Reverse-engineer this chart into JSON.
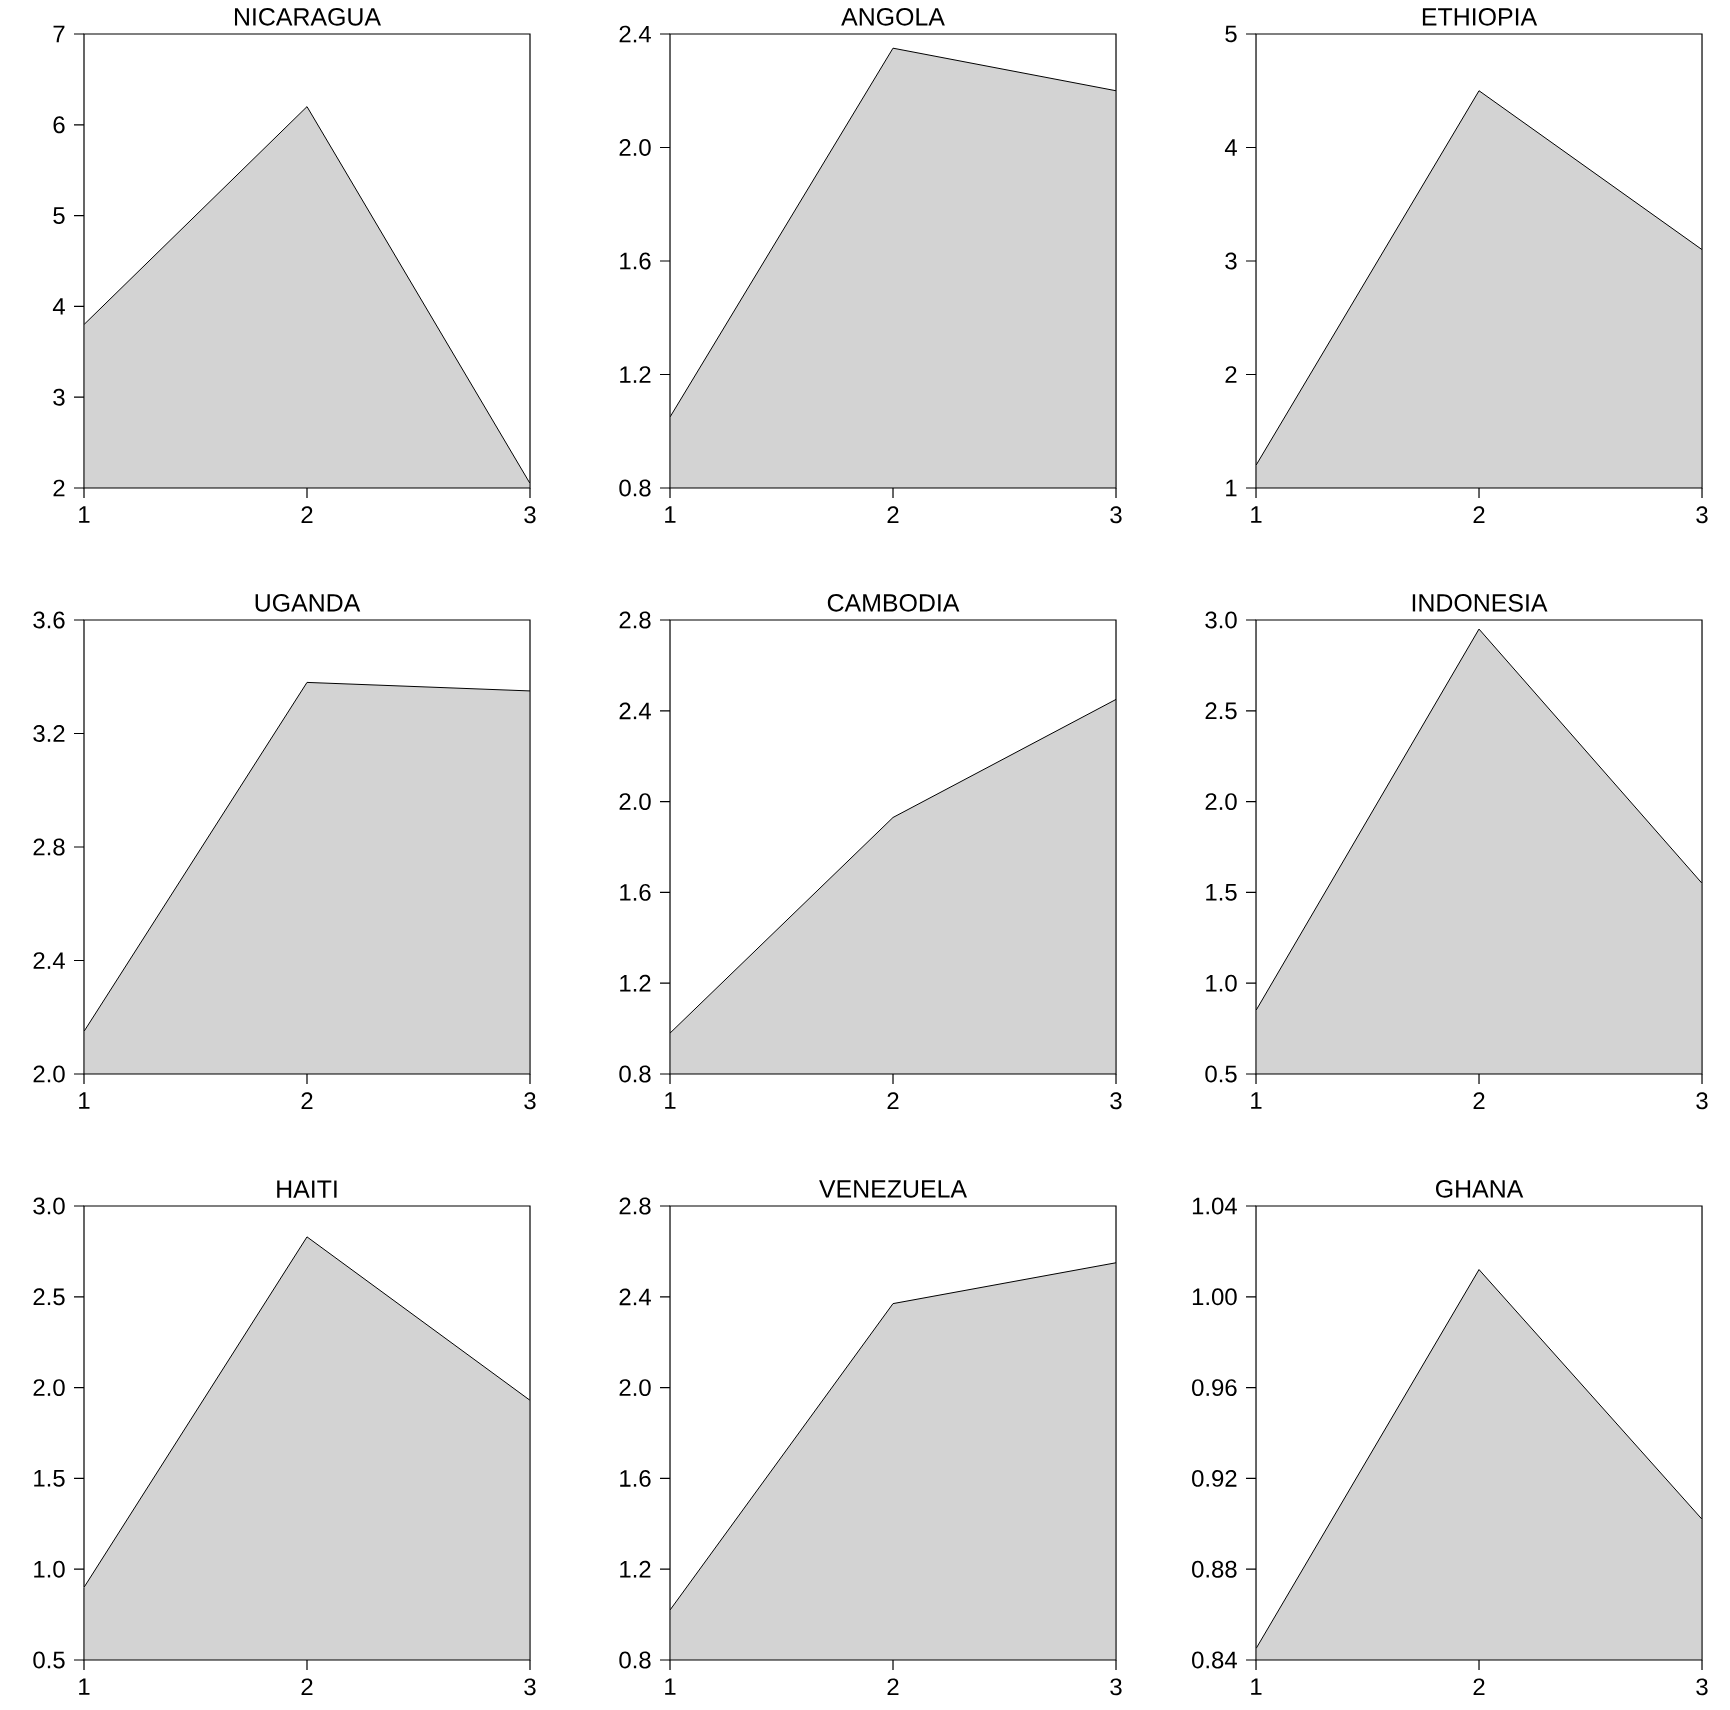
{
  "chart_data": [
    {
      "type": "area",
      "title": "NICARAGUA",
      "x": [
        1,
        2,
        3
      ],
      "values": [
        3.8,
        6.2,
        2.05
      ],
      "color": "#d3d3d3",
      "xlim": [
        1,
        3
      ],
      "xticks": [
        1,
        2,
        3
      ],
      "ylim": [
        2,
        7
      ],
      "yticks": [
        2,
        3,
        4,
        5,
        6,
        7
      ]
    },
    {
      "type": "area",
      "title": "ANGOLA",
      "x": [
        1,
        2,
        3
      ],
      "values": [
        1.05,
        2.35,
        2.2
      ],
      "color": "#d3d3d3",
      "xlim": [
        1,
        3
      ],
      "xticks": [
        1,
        2,
        3
      ],
      "ylim": [
        0.8,
        2.4
      ],
      "yticks": [
        0.8,
        1.2,
        1.6,
        {
          "value": 2,
          "label": "2.0"
        },
        2.4
      ]
    },
    {
      "type": "area",
      "title": "ETHIOPIA",
      "x": [
        1,
        2,
        3
      ],
      "values": [
        1.2,
        4.5,
        3.1
      ],
      "color": "#d3d3d3",
      "xlim": [
        1,
        3
      ],
      "xticks": [
        1,
        2,
        3
      ],
      "ylim": [
        1,
        5
      ],
      "yticks": [
        1,
        2,
        3,
        4,
        5
      ]
    },
    {
      "type": "area",
      "title": "UGANDA",
      "x": [
        1,
        2,
        3
      ],
      "values": [
        2.15,
        3.38,
        3.35
      ],
      "color": "#d3d3d3",
      "xlim": [
        1,
        3
      ],
      "xticks": [
        1,
        2,
        3
      ],
      "ylim": [
        2,
        3.6
      ],
      "yticks": [
        {
          "value": 2,
          "label": "2.0"
        },
        2.4,
        2.8,
        3.2,
        3.6
      ]
    },
    {
      "type": "area",
      "title": "CAMBODIA",
      "x": [
        1,
        2,
        3
      ],
      "values": [
        0.98,
        1.93,
        2.45
      ],
      "color": "#d3d3d3",
      "xlim": [
        1,
        3
      ],
      "xticks": [
        1,
        2,
        3
      ],
      "ylim": [
        0.8,
        2.8
      ],
      "yticks": [
        0.8,
        1.2,
        1.6,
        {
          "value": 2,
          "label": "2.0"
        },
        2.4,
        2.8
      ]
    },
    {
      "type": "area",
      "title": "INDONESIA",
      "x": [
        1,
        2,
        3
      ],
      "values": [
        0.85,
        2.95,
        1.55
      ],
      "color": "#d3d3d3",
      "xlim": [
        1,
        3
      ],
      "xticks": [
        1,
        2,
        3
      ],
      "ylim": [
        0.5,
        3
      ],
      "yticks": [
        0.5,
        {
          "value": 1,
          "label": "1.0"
        },
        1.5,
        {
          "value": 2,
          "label": "2.0"
        },
        2.5,
        {
          "value": 3,
          "label": "3.0"
        }
      ]
    },
    {
      "type": "area",
      "title": "HAITI",
      "x": [
        1,
        2,
        3
      ],
      "values": [
        0.9,
        2.83,
        1.93
      ],
      "color": "#d3d3d3",
      "xlim": [
        1,
        3
      ],
      "xticks": [
        1,
        2,
        3
      ],
      "ylim": [
        0.5,
        3
      ],
      "yticks": [
        0.5,
        {
          "value": 1,
          "label": "1.0"
        },
        1.5,
        {
          "value": 2,
          "label": "2.0"
        },
        2.5,
        {
          "value": 3,
          "label": "3.0"
        }
      ]
    },
    {
      "type": "area",
      "title": "VENEZUELA",
      "x": [
        1,
        2,
        3
      ],
      "values": [
        1.02,
        2.37,
        2.55
      ],
      "color": "#d3d3d3",
      "xlim": [
        1,
        3
      ],
      "xticks": [
        1,
        2,
        3
      ],
      "ylim": [
        0.8,
        2.8
      ],
      "yticks": [
        0.8,
        1.2,
        1.6,
        {
          "value": 2,
          "label": "2.0"
        },
        2.4,
        2.8
      ]
    },
    {
      "type": "area",
      "title": "GHANA",
      "x": [
        1,
        2,
        3
      ],
      "values": [
        0.845,
        1.012,
        0.902
      ],
      "color": "#d3d3d3",
      "xlim": [
        1,
        3
      ],
      "xticks": [
        1,
        2,
        3
      ],
      "ylim": [
        0.84,
        1.04
      ],
      "yticks": [
        0.84,
        0.88,
        0.92,
        0.96,
        {
          "value": 1.0,
          "label": "1.00"
        },
        1.04
      ]
    }
  ]
}
